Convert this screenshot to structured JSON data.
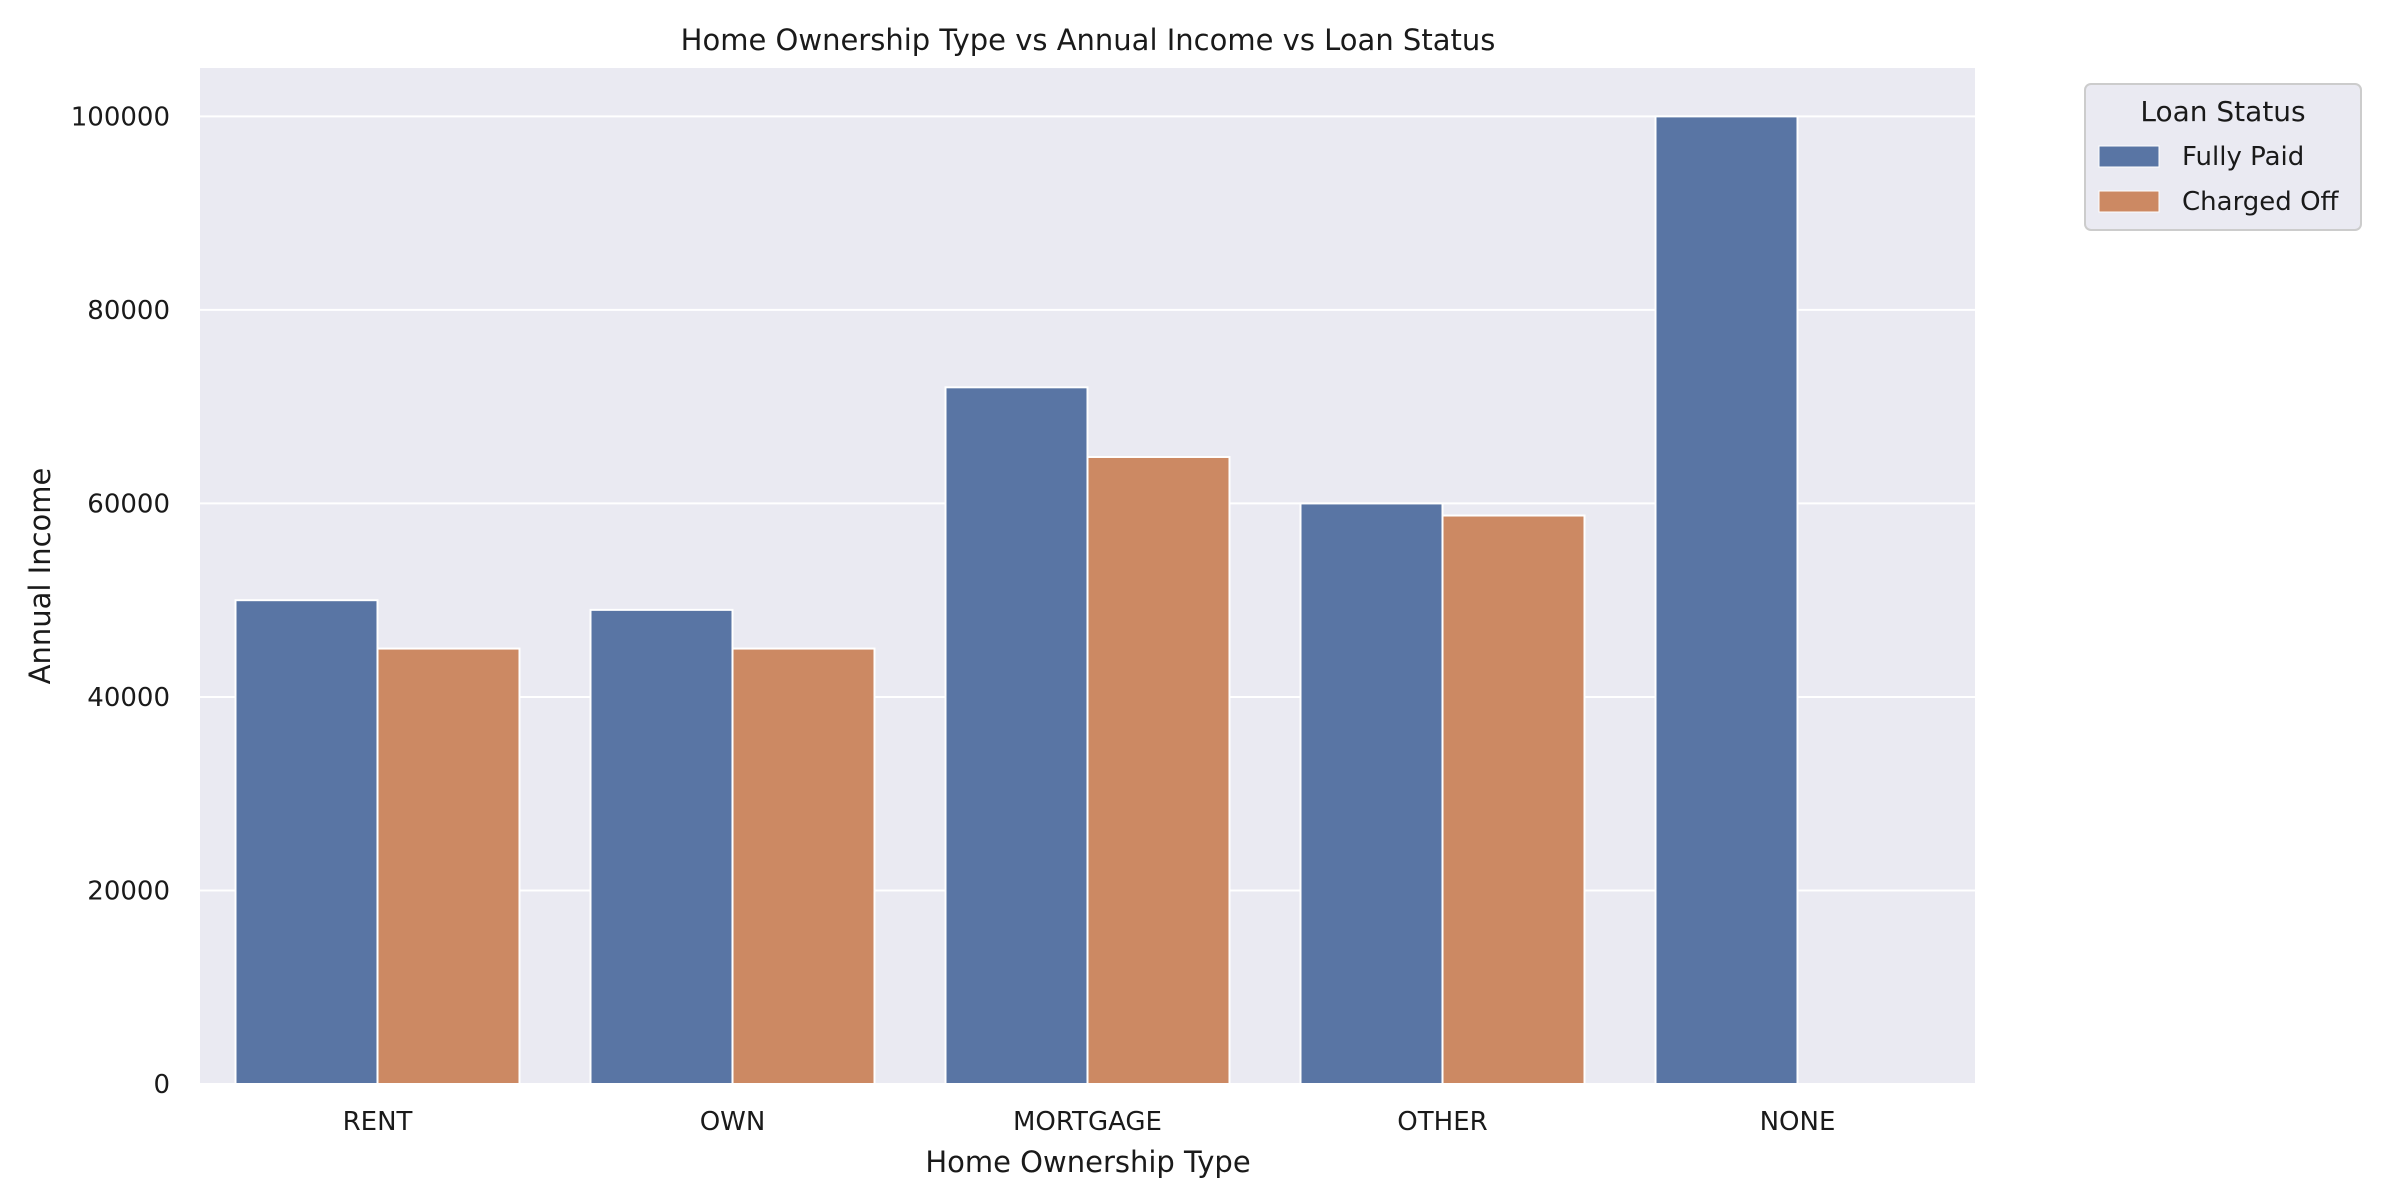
{
  "chart_data": {
    "type": "bar",
    "title": "Home Ownership Type vs Annual Income vs Loan Status",
    "xlabel": "Home Ownership Type",
    "ylabel": "Annual Income",
    "categories": [
      "RENT",
      "OWN",
      "MORTGAGE",
      "OTHER",
      "NONE"
    ],
    "series": [
      {
        "name": "Fully Paid",
        "color": "#5975a4",
        "values": [
          50000,
          49000,
          72000,
          60000,
          100000
        ]
      },
      {
        "name": "Charged Off",
        "color": "#cc8963",
        "values": [
          45000,
          45000,
          64800,
          58750,
          null
        ]
      }
    ],
    "ylim": [
      0,
      105000
    ],
    "yticks": [
      0,
      20000,
      40000,
      60000,
      80000,
      100000
    ],
    "ytick_labels": [
      "0",
      "20000",
      "40000",
      "60000",
      "80000",
      "100000"
    ],
    "grid": true,
    "legend": {
      "title": "Loan Status",
      "placement": "outside-top-right"
    },
    "background_color": "#eaeaf2"
  }
}
